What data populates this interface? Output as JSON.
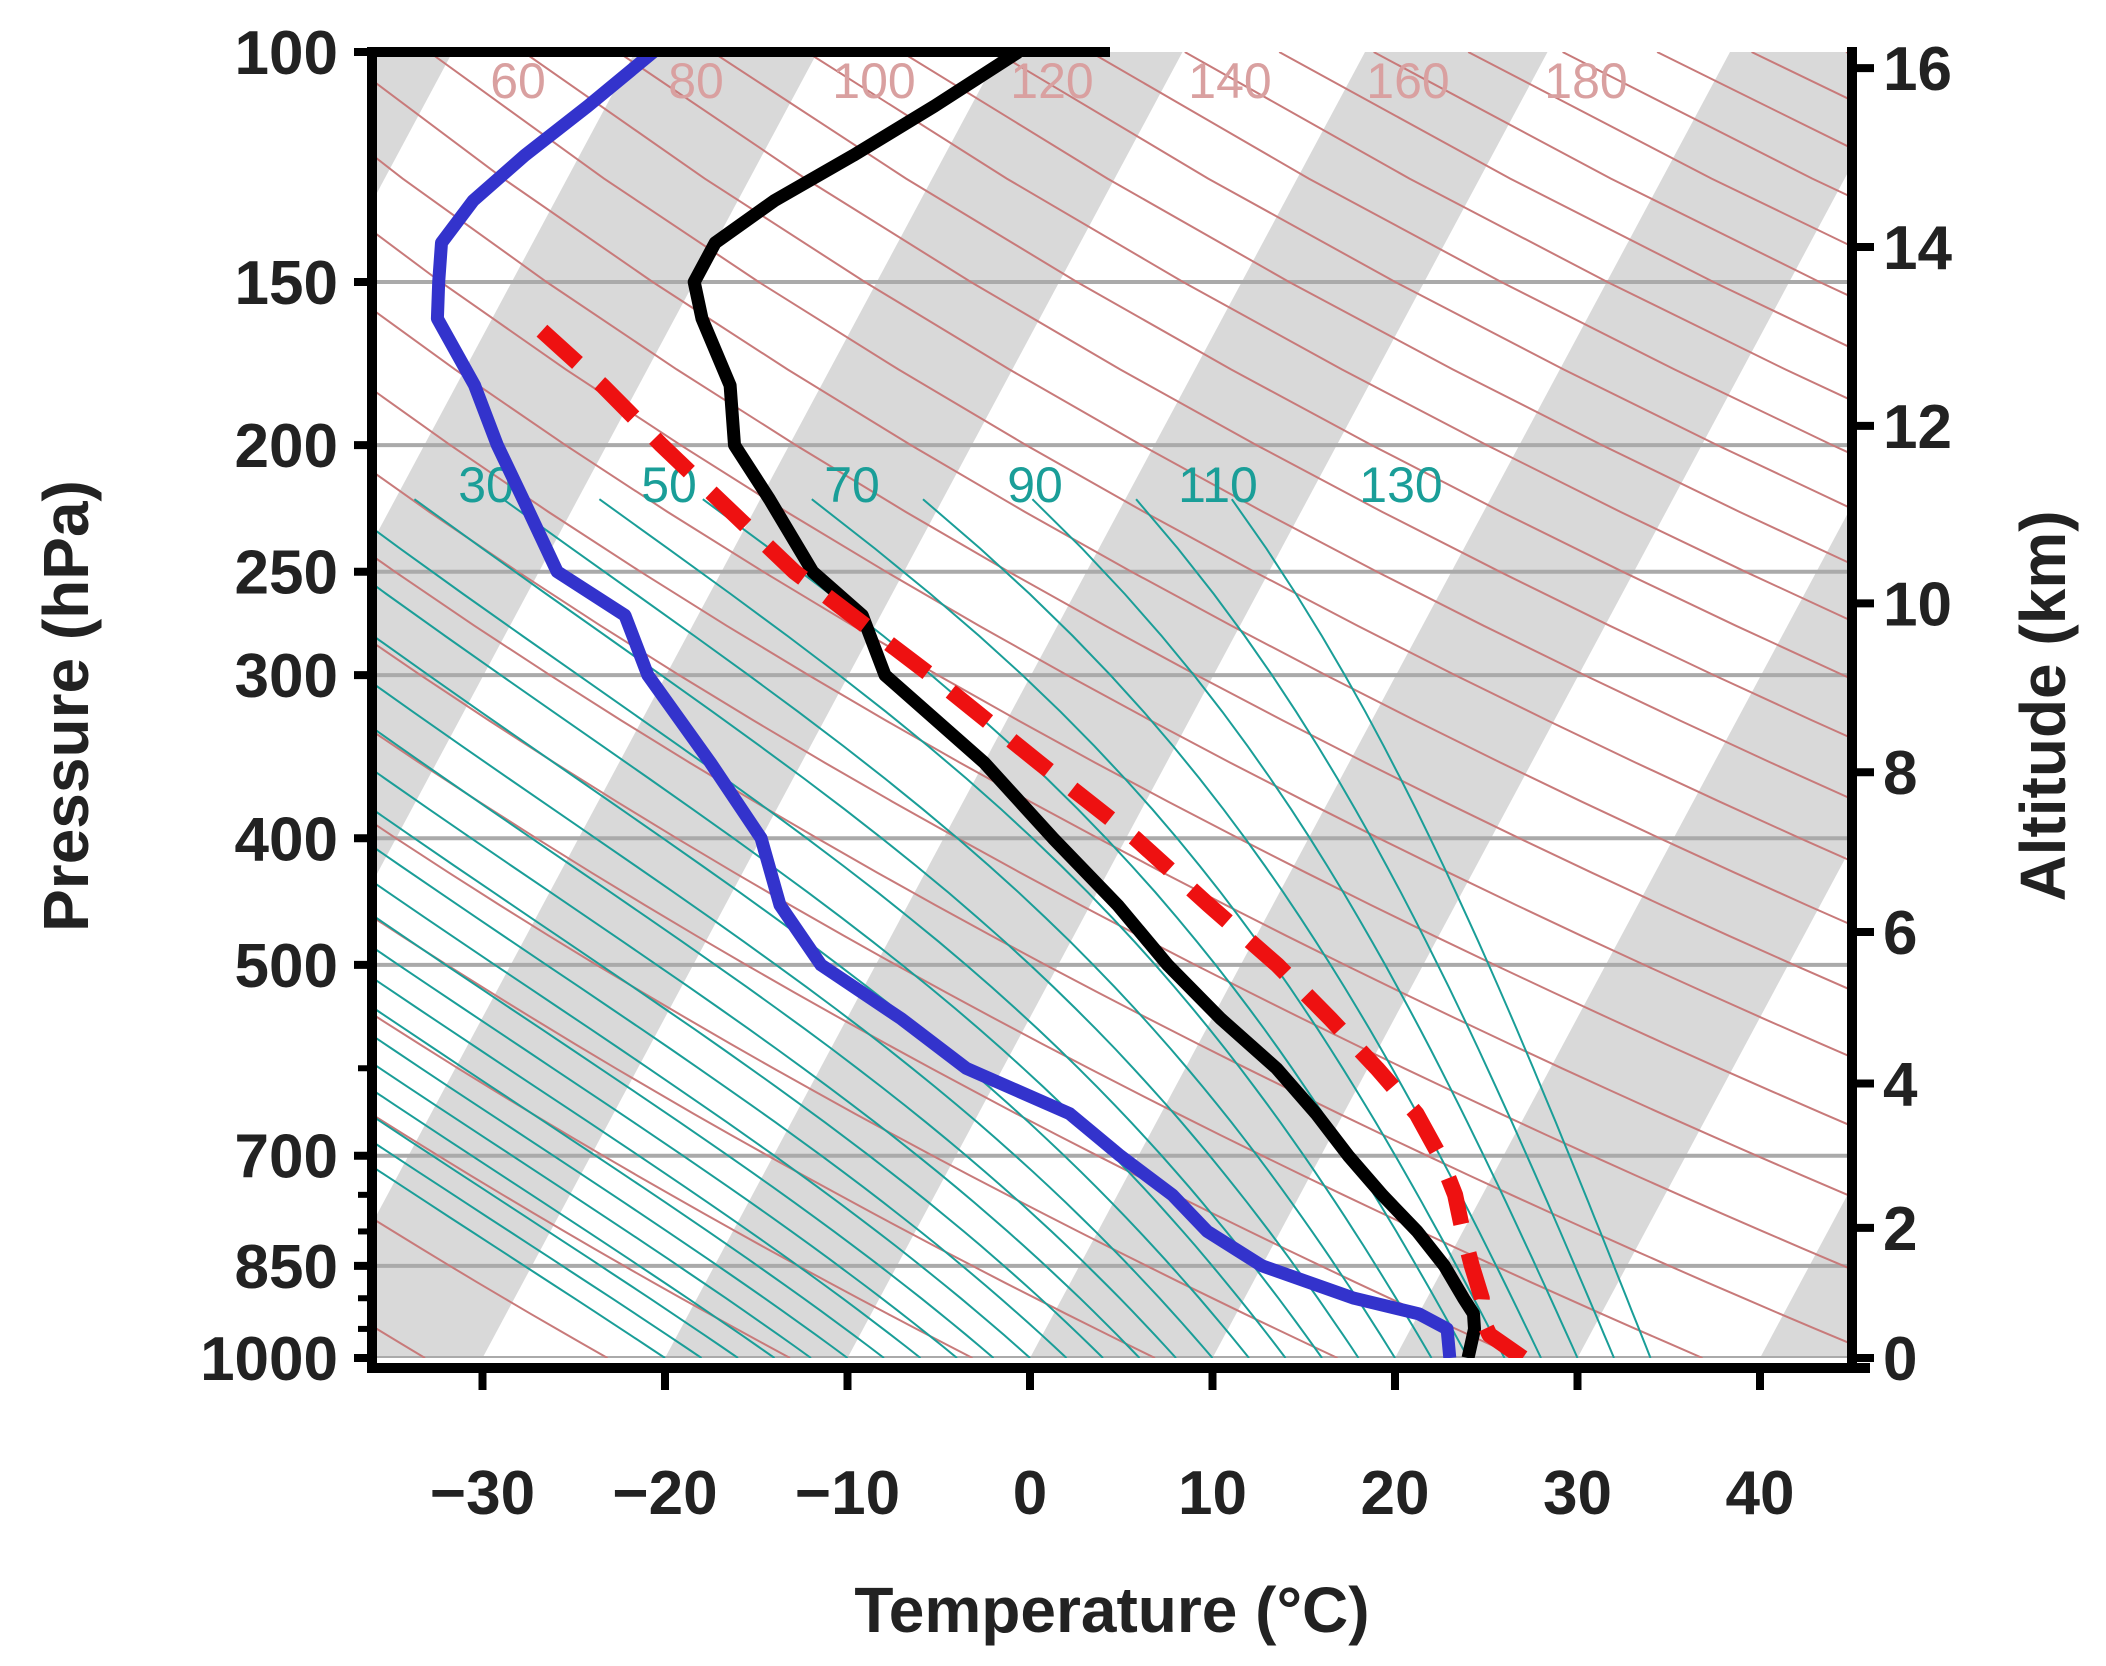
{
  "chart_data": {
    "type": "line",
    "title": "",
    "xlabel": "Temperature (°C)",
    "ylabel": "Pressure (hPa)",
    "y2label": "Altitude (km)",
    "xlim": [
      -37,
      45
    ],
    "ylim": [
      1000,
      100
    ],
    "y_scale": "log",
    "x_ticks": [
      -30,
      -20,
      -10,
      0,
      10,
      20,
      30,
      40
    ],
    "x_tick_labels": [
      "−30",
      "−20",
      "−10",
      "0",
      "10",
      "20",
      "30",
      "40"
    ],
    "y_ticks": [
      1000,
      850,
      700,
      500,
      400,
      300,
      250,
      200,
      150,
      100
    ],
    "y_tick_labels": [
      "1000",
      "850",
      "700",
      "500",
      "400",
      "300",
      "250",
      "200",
      "150",
      "100"
    ],
    "y_minor_ticks": [
      950,
      900,
      800,
      750,
      600
    ],
    "y2_ticks": [
      0,
      2,
      4,
      6,
      8,
      10,
      12,
      14,
      16
    ],
    "y2_tick_labels": [
      "0",
      "2",
      "4",
      "6",
      "8",
      "10",
      "12",
      "14",
      "16"
    ],
    "dry_adiabat_labels": [
      "60",
      "80",
      "100",
      "120",
      "140",
      "160",
      "180"
    ],
    "moist_adiabat_labels": [
      "30",
      "50",
      "70",
      "90",
      "110",
      "130"
    ],
    "colors": {
      "temperature": "#000000",
      "dewpoint": "#3333cc",
      "parcel": "#ee1111",
      "dry_adiabat": "#c87a7a",
      "moist_adiabat": "#1a9e98",
      "stripe": "#d9d9d9",
      "isobar": "#aaaaaa"
    },
    "series": [
      {
        "style": "solid",
        "pressure": [
          1000,
          950,
          925,
          900,
          850,
          800,
          750,
          700,
          650,
          600,
          550,
          500,
          450,
          400,
          350,
          300,
          270,
          250,
          220,
          200,
          180,
          160,
          150,
          140,
          130,
          120,
          110,
          100
        ],
        "values": [
          24,
          23.5,
          23,
          22,
          20,
          17.5,
          14.5,
          11.5,
          8.5,
          5,
          0.5,
          -4,
          -8.5,
          -14,
          -20,
          -28,
          -31,
          -35,
          -39.5,
          -43,
          -45,
          -48.5,
          -50,
          -50,
          -48,
          -45,
          -42,
          -39
        ]
      },
      {
        "style": "solid",
        "pressure": [
          1000,
          950,
          925,
          900,
          850,
          800,
          750,
          700,
          650,
          600,
          550,
          500,
          450,
          400,
          350,
          300,
          270,
          250,
          220,
          200,
          180,
          160,
          150,
          140,
          130,
          120,
          110,
          100
        ],
        "values": [
          23,
          22,
          20,
          16,
          10,
          6,
          3,
          -1,
          -5,
          -12,
          -17,
          -23,
          -27,
          -30,
          -35,
          -41,
          -44,
          -49,
          -53,
          -56,
          -59,
          -63,
          -64,
          -65,
          -64.5,
          -63,
          -61,
          -59
        ]
      },
      {
        "style": "dashed",
        "pressure": [
          1000,
          960,
          930,
          900,
          850,
          800,
          750,
          700,
          650,
          600,
          550,
          500,
          450,
          400,
          350,
          300,
          250,
          200,
          180,
          160
        ],
        "values": [
          27,
          24.5,
          23.5,
          23,
          21.5,
          20,
          18.5,
          16.5,
          14,
          10.5,
          6.5,
          2,
          -3.5,
          -9.5,
          -17,
          -25.5,
          -36,
          -47,
          -52,
          -58
        ]
      }
    ]
  }
}
